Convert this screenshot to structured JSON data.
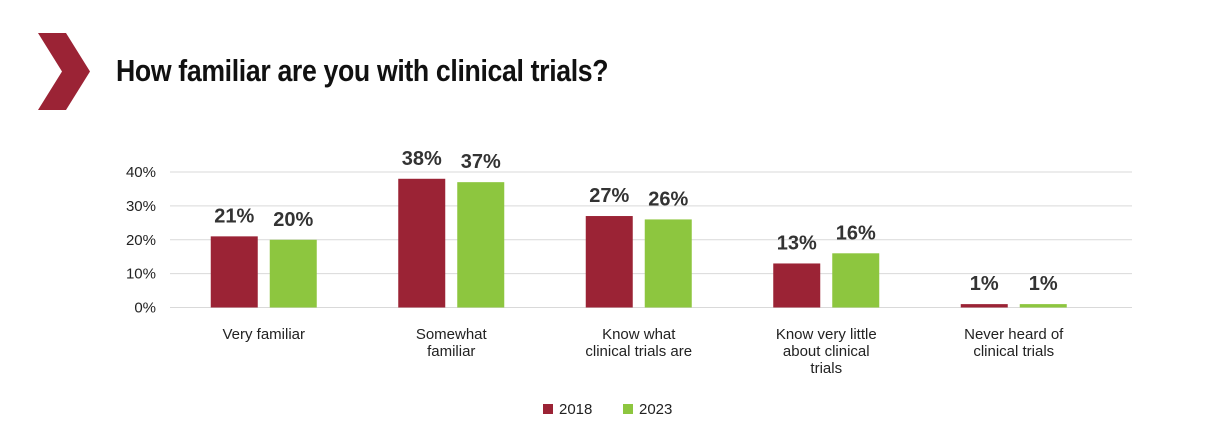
{
  "header": {
    "title": "How familiar are you with clinical trials?",
    "accent_color": "#9b2335"
  },
  "chart_data": {
    "type": "bar",
    "title": "How familiar are you with clinical trials?",
    "categories": [
      [
        "Very familiar"
      ],
      [
        "Somewhat",
        "familiar"
      ],
      [
        "Know what",
        "clinical trials are"
      ],
      [
        "Know very little",
        "about clinical",
        "trials"
      ],
      [
        "Never heard of",
        "clinical trials"
      ]
    ],
    "series": [
      {
        "name": "2018",
        "color": "#9b2335",
        "values": [
          21,
          38,
          27,
          13,
          1
        ]
      },
      {
        "name": "2023",
        "color": "#8dc63f",
        "values": [
          20,
          37,
          26,
          16,
          1
        ]
      }
    ],
    "value_format": "{v}%",
    "ylim": [
      0,
      40
    ],
    "yticks": [
      0,
      10,
      20,
      30,
      40
    ],
    "ytick_labels": [
      "0%",
      "10%",
      "20%",
      "30%",
      "40%"
    ],
    "xlabel": "",
    "ylabel": "",
    "grid": true,
    "grid_color": "#d9d9d9",
    "legend": {
      "position": "bottom",
      "entries": [
        "2018",
        "2023"
      ]
    }
  }
}
